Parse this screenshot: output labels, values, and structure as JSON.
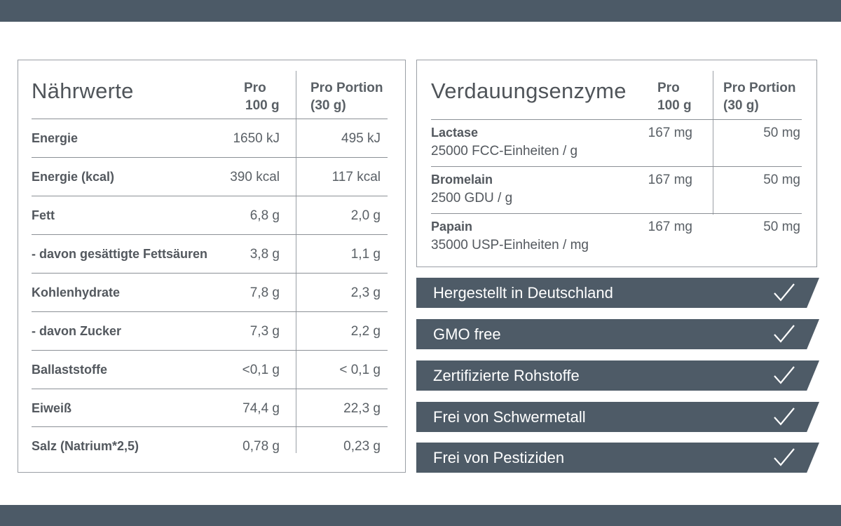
{
  "nutrition": {
    "title": "Nährwerte",
    "col1_line1": "Pro",
    "col1_line2": "100 g",
    "col2_line1": "Pro Portion",
    "col2_line2": "(30 g)",
    "rows": [
      {
        "label": "Energie",
        "per100": "1650 kJ",
        "portion": "495 kJ"
      },
      {
        "label": "Energie (kcal)",
        "per100": "390 kcal",
        "portion": "117 kcal"
      },
      {
        "label": "Fett",
        "per100": "6,8 g",
        "portion": "2,0 g"
      },
      {
        "label": "- davon gesättigte Fettsäuren",
        "per100": "3,8 g",
        "portion": "1,1 g"
      },
      {
        "label": "Kohlenhydrate",
        "per100": "7,8 g",
        "portion": "2,3 g"
      },
      {
        "label": "- davon Zucker",
        "per100": "7,3 g",
        "portion": "2,2 g"
      },
      {
        "label": "Ballaststoffe",
        "per100": "<0,1 g",
        "portion": "< 0,1 g"
      },
      {
        "label": "Eiweiß",
        "per100": "74,4 g",
        "portion": "22,3 g"
      },
      {
        "label": "Salz (Natrium*2,5)",
        "per100": "0,78 g",
        "portion": "0,23 g"
      }
    ]
  },
  "enzymes": {
    "title": "Verdauungsenzyme",
    "col1_line1": "Pro",
    "col1_line2": "100 g",
    "col2_line1": "Pro Portion",
    "col2_line2": "(30 g)",
    "rows": [
      {
        "name": "Lactase",
        "unit": "25000 FCC-Einheiten / g",
        "per100": "167 mg",
        "portion": "50 mg"
      },
      {
        "name": "Bromelain",
        "unit": "2500 GDU / g",
        "per100": "167 mg",
        "portion": "50 mg"
      },
      {
        "name": "Papain",
        "unit": "35000 USP-Einheiten / mg",
        "per100": "167 mg",
        "portion": "50 mg"
      }
    ]
  },
  "features": [
    {
      "text": "Hergestellt in Deutschland",
      "icon": "checkmark-icon"
    },
    {
      "text": "GMO free",
      "icon": "checkmark-icon"
    },
    {
      "text": "Zertifizierte Rohstoffe",
      "icon": "checkmark-icon"
    },
    {
      "text": "Frei von Schwermetall",
      "icon": "checkmark-icon"
    },
    {
      "text": "Frei von Pestiziden",
      "icon": "checkmark-icon"
    }
  ],
  "colors": {
    "band": "#4c5a67",
    "banner": "#4e5b67",
    "text": "#53585e",
    "rule": "#8b9096"
  }
}
